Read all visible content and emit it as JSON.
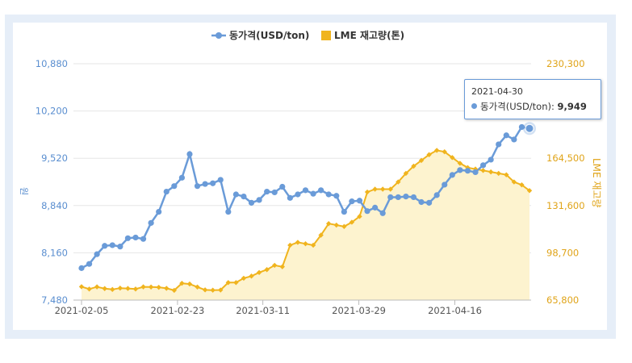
{
  "colors": {
    "price": "#6a9bd8",
    "inventory": "#f0b41e",
    "inventory_fill": "#fdf3cf",
    "left_axis_text": "#5b8fd0",
    "right_axis_text": "#e0a419"
  },
  "legend": {
    "price_label": "동가격(USD/ton)",
    "inventory_label": "LME 재고량(톤)"
  },
  "axes": {
    "left_title": "원",
    "right_title": "LME 재고량",
    "left_ticks": [
      "10,880",
      "10,200",
      "9,520",
      "8,840",
      "8,160",
      "7,480"
    ],
    "right_ticks": [
      "230,300",
      "197,400",
      "164,500",
      "131,600",
      "98,700",
      "65,800"
    ],
    "x_ticks": [
      "2021-02-05",
      "2021-02-23",
      "2021-03-11",
      "2021-03-29",
      "2021-04-16"
    ]
  },
  "tooltip": {
    "date": "2021-04-30",
    "series": "동가격(USD/ton):",
    "value": "9,949"
  },
  "chart_data": {
    "type": "line",
    "x_start": "2021-02-05",
    "x_end": "2021-04-30",
    "y_left_range": [
      7480,
      10880
    ],
    "y_right_range": [
      65800,
      230300
    ],
    "series": [
      {
        "name": "동가격(USD/ton)",
        "axis": "left",
        "type": "line",
        "values": [
          7940,
          8000,
          8140,
          8260,
          8270,
          8250,
          8370,
          8380,
          8360,
          8590,
          8750,
          9040,
          9120,
          9240,
          9580,
          9120,
          9150,
          9160,
          9210,
          8750,
          9000,
          8970,
          8880,
          8920,
          9040,
          9030,
          9110,
          8950,
          9000,
          9060,
          9010,
          9060,
          9000,
          8980,
          8750,
          8900,
          8910,
          8760,
          8810,
          8730,
          8960,
          8960,
          8970,
          8960,
          8890,
          8880,
          8990,
          9140,
          9280,
          9350,
          9340,
          9320,
          9420,
          9500,
          9720,
          9850,
          9790,
          9970,
          9949
        ]
      },
      {
        "name": "LME 재고량(톤)",
        "axis": "right",
        "type": "area",
        "values": [
          75100,
          73500,
          75000,
          73800,
          73200,
          74100,
          73900,
          73500,
          75000,
          74900,
          74700,
          74000,
          72600,
          77500,
          77000,
          74900,
          72900,
          72700,
          72800,
          78000,
          78000,
          81000,
          82500,
          85000,
          87000,
          90000,
          89000,
          104000,
          106000,
          105000,
          104000,
          111000,
          119000,
          118000,
          117000,
          120000,
          124000,
          141000,
          143000,
          143000,
          143000,
          148000,
          154000,
          159000,
          163000,
          167000,
          170000,
          169000,
          165000,
          161000,
          158000,
          157000,
          156000,
          155000,
          154000,
          153000,
          148000,
          146000,
          142000
        ]
      }
    ]
  }
}
